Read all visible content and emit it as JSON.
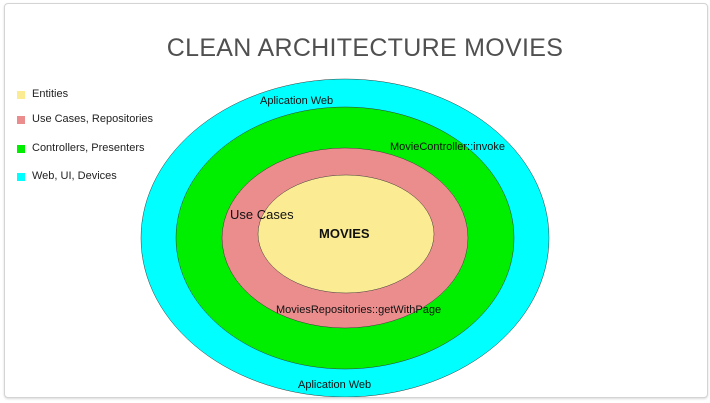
{
  "title": "CLEAN ARCHITECTURE MOVIES",
  "legend": [
    {
      "label": "Entities",
      "color": "#fbec94"
    },
    {
      "label": "Use Cases, Repositories",
      "color": "#ec8d8d"
    },
    {
      "label": "Controllers, Presenters",
      "color": "#00ee00"
    },
    {
      "label": "Web, UI, Devices",
      "color": "#00ffff"
    }
  ],
  "layers": {
    "web": {
      "color": "#00ffff",
      "label_top": "Aplication Web",
      "label_bottom": "Aplication Web"
    },
    "controllers": {
      "color": "#00ee00",
      "label": "MovieController::invoke"
    },
    "use_cases": {
      "color": "#ec8d8d",
      "label": "Use Cases",
      "repository_label": "MoviesRepositories::getWithPage"
    },
    "entities": {
      "color": "#fbec94",
      "label": "MOVIES"
    }
  }
}
